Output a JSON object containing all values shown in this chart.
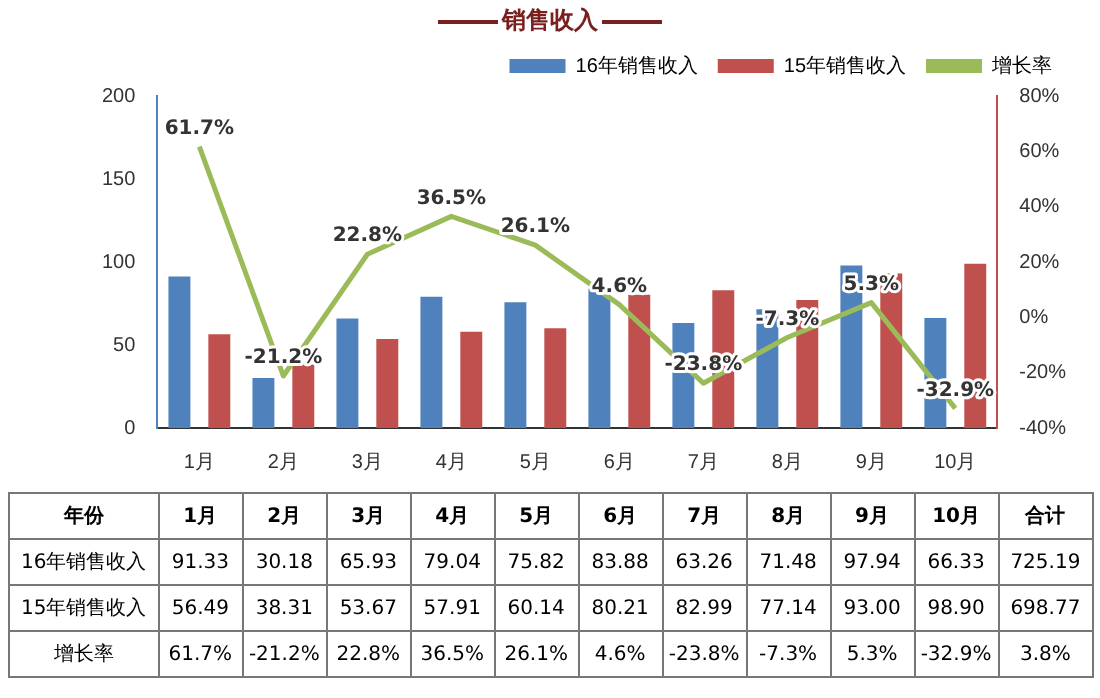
{
  "chart_data": {
    "type": "bar",
    "title": "销售收入",
    "categories": [
      "1月",
      "2月",
      "3月",
      "4月",
      "5月",
      "6月",
      "7月",
      "8月",
      "9月",
      "10月"
    ],
    "series": [
      {
        "name": "16年销售收入",
        "color": "#4f81bd",
        "values": [
          91.33,
          30.18,
          65.93,
          79.04,
          75.82,
          83.88,
          63.26,
          71.48,
          97.94,
          66.33
        ],
        "value_labels": [
          "91.33",
          "30.18",
          "65.93",
          "79.04",
          "75.82",
          "83.88",
          "63.26",
          "71.48",
          "97.94",
          "66.33"
        ]
      },
      {
        "name": "15年销售收入",
        "color": "#c0504d",
        "values": [
          56.49,
          38.31,
          53.67,
          57.91,
          60.14,
          80.21,
          82.99,
          77.14,
          93.0,
          98.9
        ],
        "value_labels": [
          "56.49",
          "38.31",
          "53.67",
          "57.91",
          "60.14",
          "80.21",
          "82.99",
          "77.14",
          "93.00",
          "98.90"
        ]
      },
      {
        "name": "增长率",
        "type": "line",
        "axis": "y2",
        "color": "#9bbb59",
        "values": [
          61.7,
          -21.2,
          22.8,
          36.5,
          26.1,
          4.6,
          -23.8,
          -7.3,
          5.3,
          -32.9
        ],
        "value_labels": [
          "61.7%",
          "-21.2%",
          "22.8%",
          "36.5%",
          "26.1%",
          "4.6%",
          "-23.8%",
          "-7.3%",
          "5.3%",
          "-32.9%"
        ]
      }
    ],
    "ylim": [
      0,
      200
    ],
    "yticks": [
      0,
      50,
      100,
      150,
      200
    ],
    "y2lim": [
      -40,
      80
    ],
    "y2ticks": [
      {
        "value": -40,
        "label": "-40%"
      },
      {
        "value": -20,
        "label": "-20%"
      },
      {
        "value": 0,
        "label": "0%"
      },
      {
        "value": 20,
        "label": "20%"
      },
      {
        "value": 40,
        "label": "40%"
      },
      {
        "value": 60,
        "label": "60%"
      },
      {
        "value": 80,
        "label": "80%"
      }
    ],
    "annotations": [
      "年份",
      "合计",
      "725.19",
      "698.77",
      "3.8%"
    ],
    "grid": false,
    "legend": "top right",
    "marker": "none",
    "line_style": "solid"
  }
}
